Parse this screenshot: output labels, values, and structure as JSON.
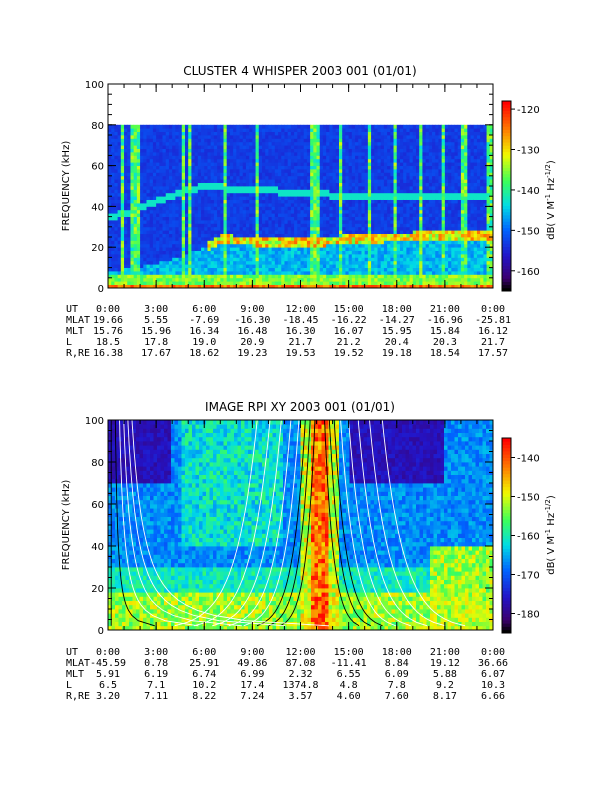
{
  "charts": [
    {
      "title": "CLUSTER 4 WHISPER 2003 001 (01/01)",
      "ylabel": "FREQUENCY (kHz)",
      "cbar_label": "dB( V M",
      "cbar_sup1": "-1",
      "cbar_mid": " Hz",
      "cbar_sup2": "-1/2",
      "cbar_end": ")"
    },
    {
      "title": "IMAGE RPI XY 2003 001 (01/01)",
      "ylabel": "FREQUENCY (kHz)",
      "cbar_label": "dB( V M",
      "cbar_sup1": "-1",
      "cbar_mid": " Hz",
      "cbar_sup2": "-1/2",
      "cbar_end": ")"
    }
  ],
  "chart_data": [
    {
      "type": "heatmap",
      "title": "CLUSTER 4 WHISPER 2003 001 (01/01)",
      "ylabel": "FREQUENCY (kHz)",
      "ylim": [
        0,
        100
      ],
      "y_ticks": [
        "0",
        "20",
        "40",
        "60",
        "80",
        "100"
      ],
      "x_ticks": [
        "0:00",
        "3:00",
        "6:00",
        "9:00",
        "12:00",
        "15:00",
        "18:00",
        "21:00",
        "0:00"
      ],
      "data_top_khz": 80,
      "colorbar": {
        "min": -165,
        "max": -118,
        "ticks": [
          "-120",
          "-130",
          "-140",
          "-150",
          "-160"
        ]
      },
      "features": {
        "upper_band": [
          [
            0,
            35
          ],
          [
            1.5,
            38
          ],
          [
            3,
            43
          ],
          [
            4.5,
            47
          ],
          [
            6,
            50
          ],
          [
            9,
            48
          ],
          [
            12,
            47
          ],
          [
            15,
            45
          ],
          [
            18,
            45
          ],
          [
            21,
            45
          ],
          [
            24,
            45
          ]
        ],
        "lower_band": [
          [
            0,
            8
          ],
          [
            3,
            12
          ],
          [
            6,
            20
          ],
          [
            7,
            24
          ],
          [
            9,
            23
          ],
          [
            12,
            22
          ],
          [
            15,
            24
          ],
          [
            18,
            25
          ],
          [
            21,
            26
          ],
          [
            24,
            26
          ]
        ]
      },
      "ephemeris": {
        "rows": [
          {
            "label": "UT",
            "values": [
              "0:00",
              "3:00",
              "6:00",
              "9:00",
              "12:00",
              "15:00",
              "18:00",
              "21:00",
              "0:00"
            ]
          },
          {
            "label": "MLAT",
            "values": [
              "19.66",
              "5.55",
              "-7.69",
              "-16.30",
              "-18.45",
              "-16.22",
              "-14.27",
              "-16.96",
              "-25.81"
            ]
          },
          {
            "label": "MLT",
            "values": [
              "15.76",
              "15.96",
              "16.34",
              "16.48",
              "16.30",
              "16.07",
              "15.95",
              "15.84",
              "16.12"
            ]
          },
          {
            "label": "L",
            "values": [
              "18.5",
              "17.8",
              "19.0",
              "20.9",
              "21.7",
              "21.2",
              "20.4",
              "20.3",
              "21.7"
            ]
          },
          {
            "label": "R,RE",
            "values": [
              "16.38",
              "17.67",
              "18.62",
              "19.23",
              "19.53",
              "19.52",
              "19.18",
              "18.54",
              "17.57"
            ]
          }
        ]
      }
    },
    {
      "type": "heatmap",
      "title": "IMAGE RPI XY 2003 001 (01/01)",
      "ylabel": "FREQUENCY (kHz)",
      "ylim": [
        0,
        100
      ],
      "y_ticks": [
        "0",
        "20",
        "40",
        "60",
        "80",
        "100"
      ],
      "x_ticks": [
        "0:00",
        "3:00",
        "6:00",
        "9:00",
        "12:00",
        "15:00",
        "18:00",
        "21:00",
        "0:00"
      ],
      "colorbar": {
        "min": -185,
        "max": -135,
        "ticks": [
          "-140",
          "-150",
          "-160",
          "-170",
          "-180"
        ]
      },
      "features": {
        "perigee_hour": 13.2,
        "overlay_curves": "white contour lines converging at perigee"
      },
      "ephemeris": {
        "rows": [
          {
            "label": "UT",
            "values": [
              "0:00",
              "3:00",
              "6:00",
              "9:00",
              "12:00",
              "15:00",
              "18:00",
              "21:00",
              "0:00"
            ]
          },
          {
            "label": "MLAT",
            "values": [
              "-45.59",
              "0.78",
              "25.91",
              "49.86",
              "87.08",
              "-11.41",
              "8.84",
              "19.12",
              "36.66"
            ]
          },
          {
            "label": "MLT",
            "values": [
              "5.91",
              "6.19",
              "6.74",
              "6.99",
              "2.32",
              "6.55",
              "6.09",
              "5.88",
              "6.07"
            ]
          },
          {
            "label": "L",
            "values": [
              "6.5",
              "7.1",
              "10.2",
              "17.4",
              "1374.8",
              "4.8",
              "7.8",
              "9.2",
              "10.3"
            ]
          },
          {
            "label": "R,RE",
            "values": [
              "3.20",
              "7.11",
              "8.22",
              "7.24",
              "3.57",
              "4.60",
              "7.60",
              "8.17",
              "6.66"
            ]
          }
        ]
      }
    }
  ]
}
